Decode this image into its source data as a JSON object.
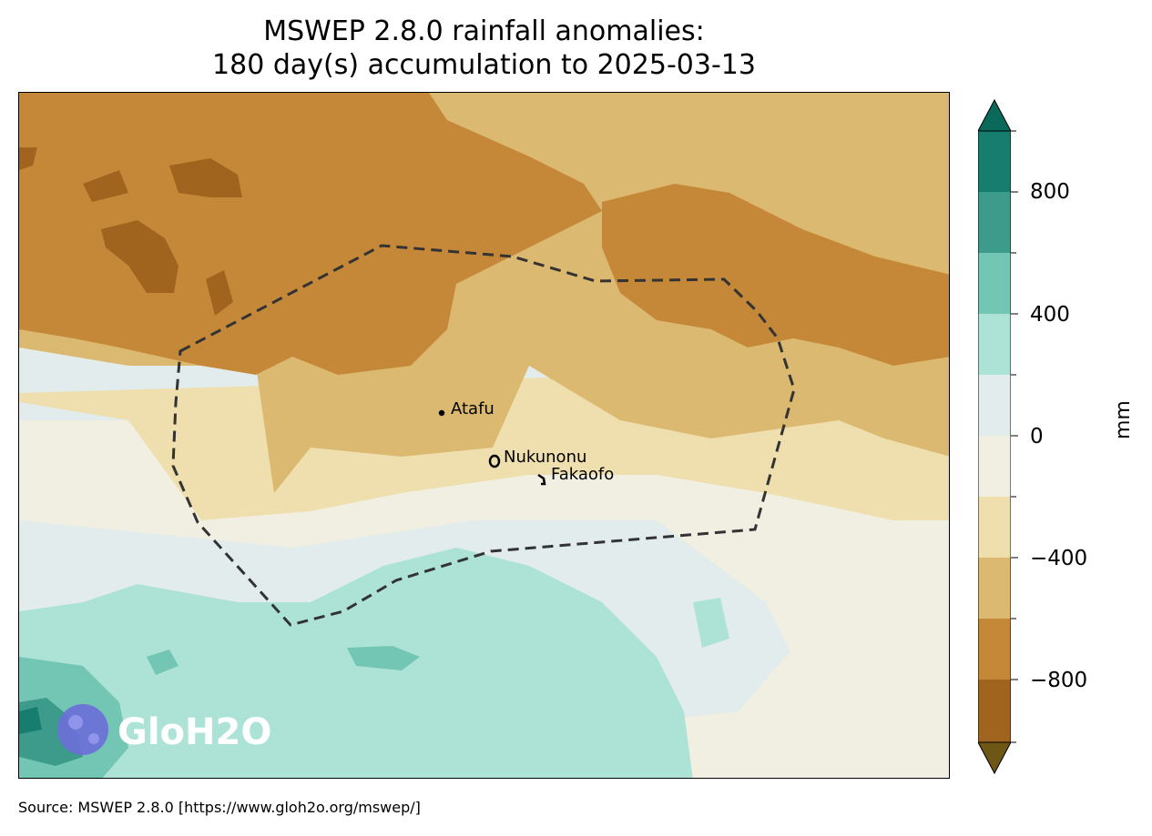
{
  "title": {
    "line1": "MSWEP 2.8.0 rainfall anomalies:",
    "line2": "180 day(s) accumulation to 2025-03-13"
  },
  "map": {
    "places": [
      {
        "name": "Atafu"
      },
      {
        "name": "Nukunonu"
      },
      {
        "name": "Fakaofo"
      }
    ],
    "boundary_style": "dashed",
    "logo_text": "GloH2O"
  },
  "colorbar": {
    "unit": "mm",
    "extend": "both",
    "levels": [
      -1000,
      -800,
      -600,
      -400,
      -200,
      0,
      200,
      400,
      600,
      800,
      1000
    ],
    "tick_labels": [
      "800",
      "400",
      "0",
      "−400",
      "−800"
    ],
    "colors": {
      "under": "#6e5614",
      "b1": "#a1641e",
      "b2": "#c58838",
      "b3": "#dbb970",
      "b4": "#efdfae",
      "b5": "#f1efe1",
      "b6": "#e2ecec",
      "b7": "#ade3d7",
      "b8": "#72c6b3",
      "b9": "#3d9b8c",
      "b10": "#167d6f",
      "over": "#0a6a5a"
    }
  },
  "source": "Source: MSWEP 2.8.0 [https://www.gloh2o.org/mswep/]"
}
